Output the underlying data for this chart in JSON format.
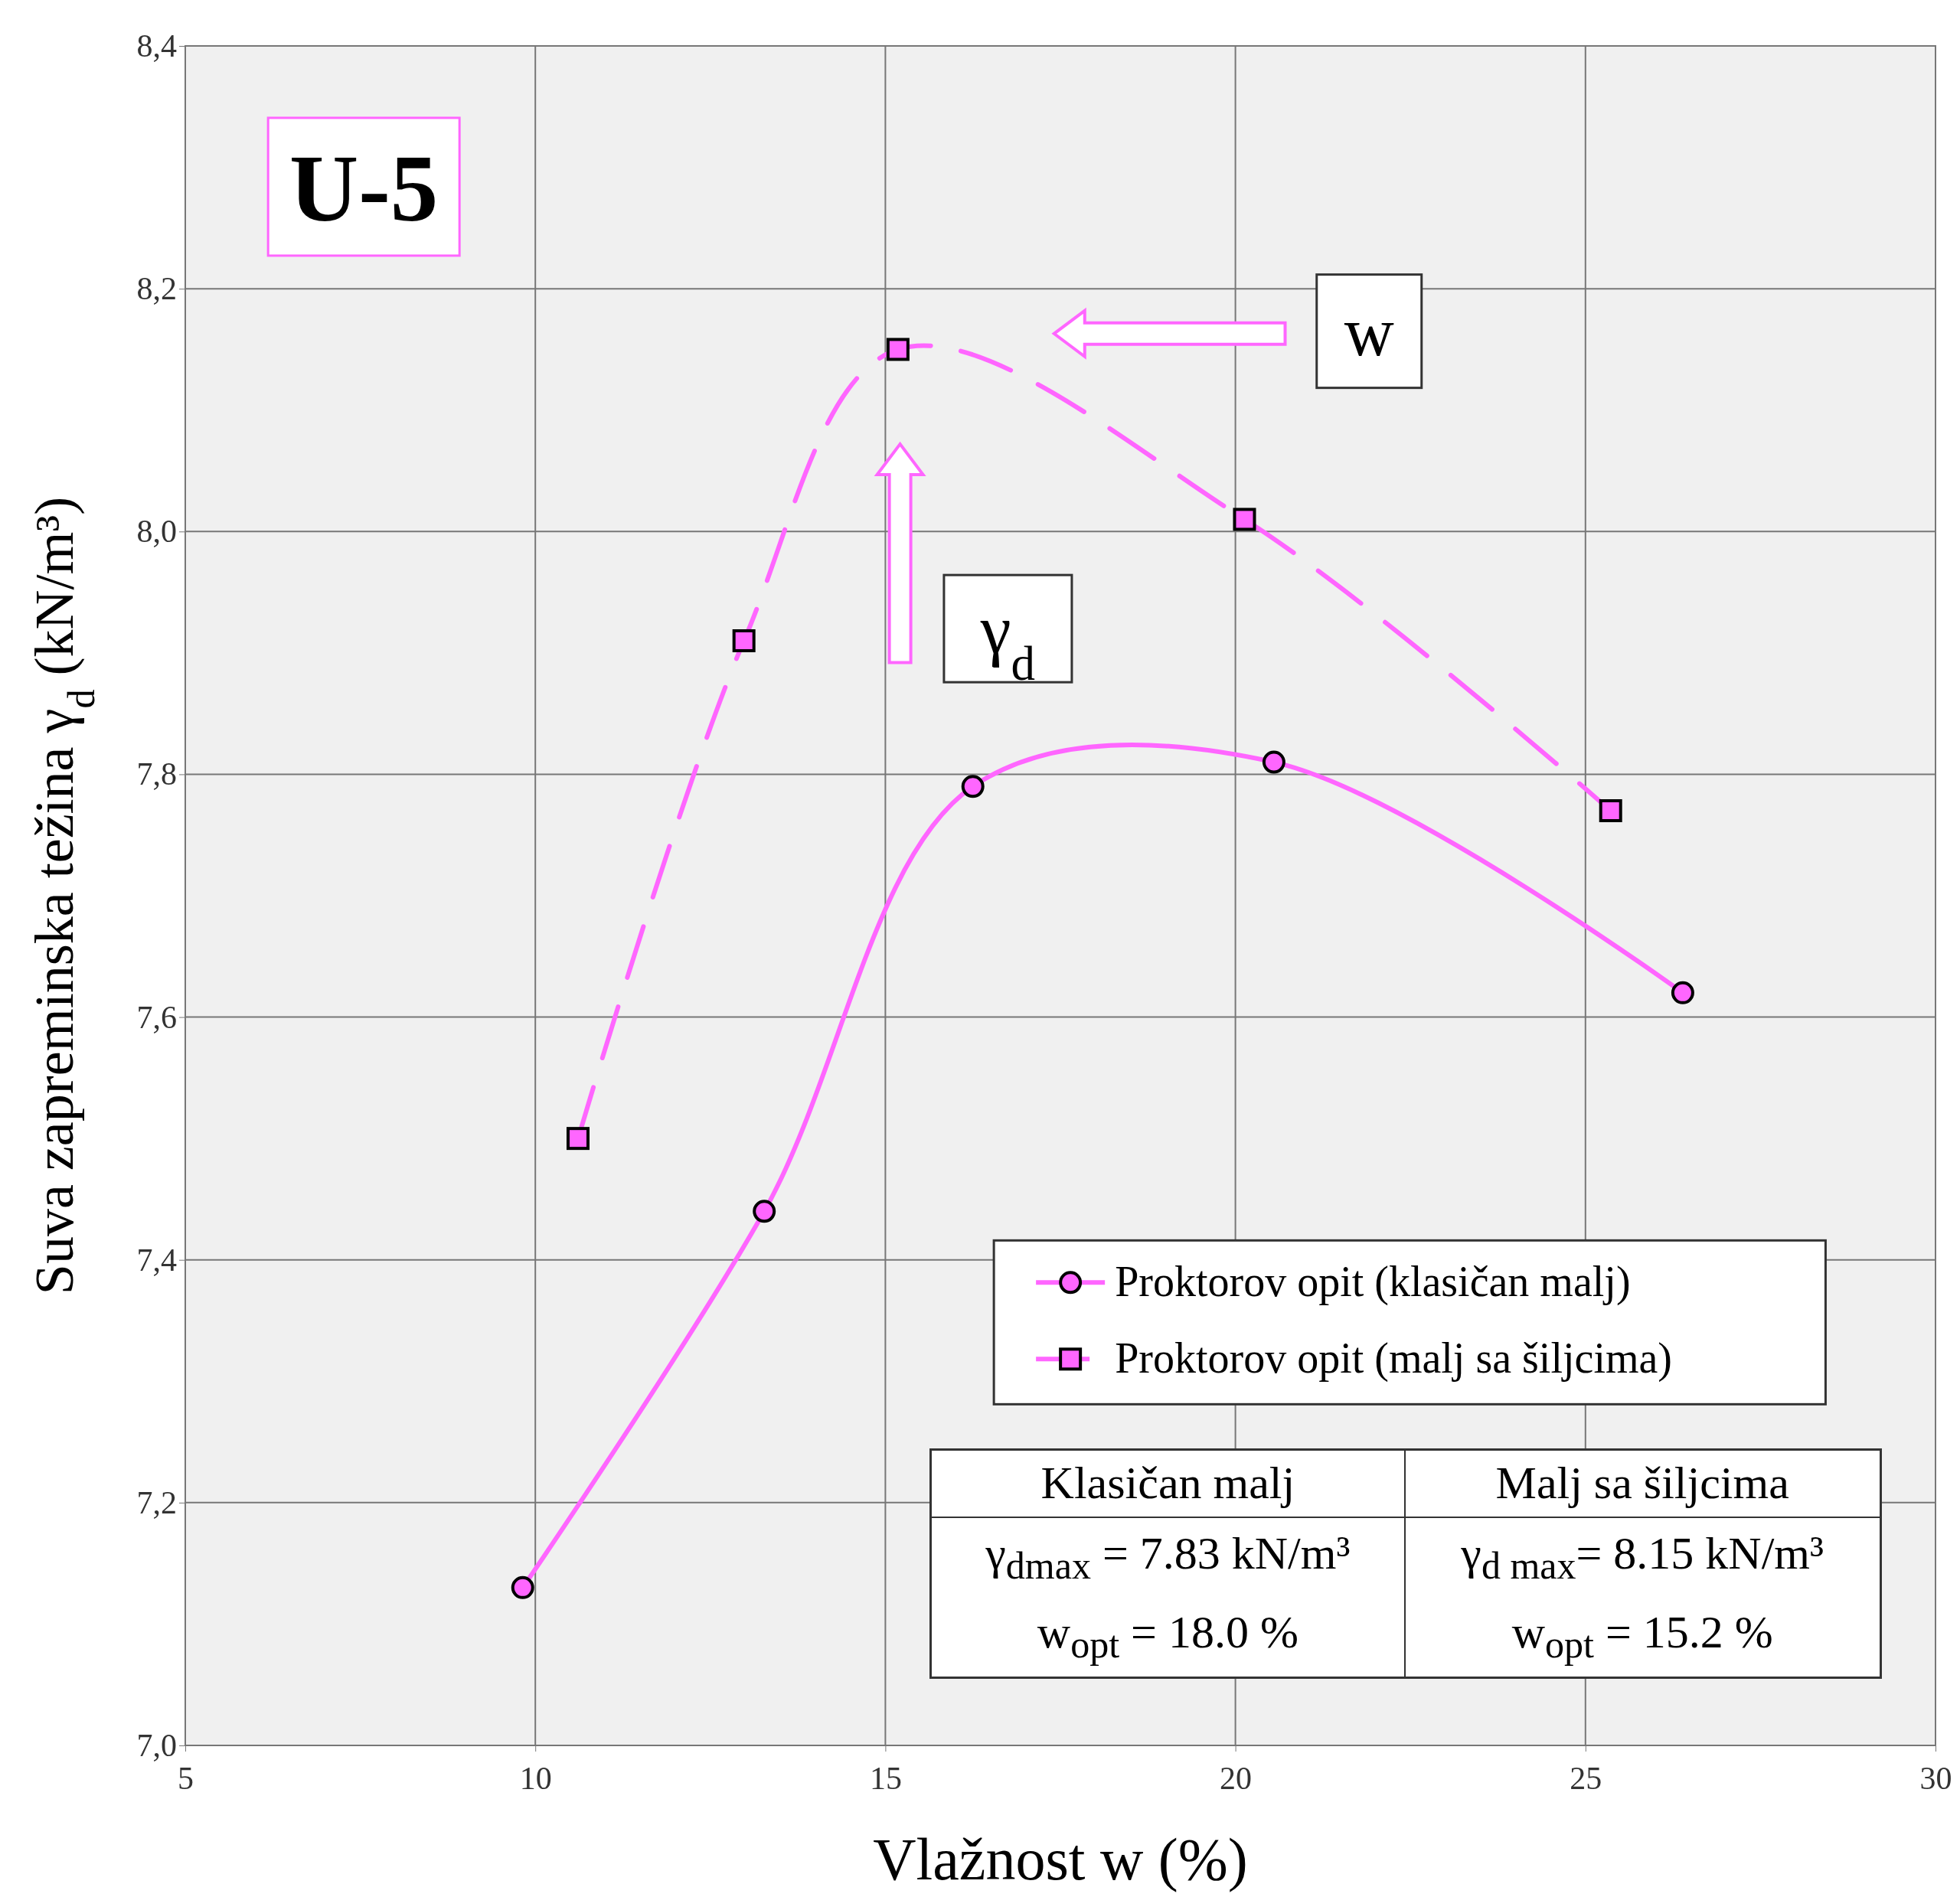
{
  "chart_data": {
    "type": "line",
    "xlabel": "Vlažnost w (%)",
    "ylabel": "Suva zapreminska težina γ$_{d}$  (kN/m³)",
    "xlim": [
      5,
      30
    ],
    "xticks": [
      5,
      10,
      15,
      20,
      25,
      30
    ],
    "ylim": [
      7.0,
      8.4
    ],
    "yticks": [
      {
        "value": 7.0,
        "label": "7,0"
      },
      {
        "value": 7.2,
        "label": "7,2"
      },
      {
        "value": 7.4,
        "label": "7,4"
      },
      {
        "value": 7.6,
        "label": "7,6"
      },
      {
        "value": 7.8,
        "label": "7,8"
      },
      {
        "value": 8.0,
        "label": "8,0"
      },
      {
        "value": 8.2,
        "label": "8,2"
      },
      {
        "value": 8.4,
        "label": "8,4"
      }
    ],
    "grid": true,
    "legend": "bottom right",
    "series": [
      {
        "name": "Proktorov opit (klasičan malj)",
        "color": "#ff66ff",
        "marker": "circle",
        "line_style": "solid",
        "x": [
          9.82,
          13.27,
          16.25,
          20.55,
          26.39
        ],
        "values": [
          7.13,
          7.44,
          7.79,
          7.81,
          7.62
        ]
      },
      {
        "name": "Proktorov opit (malj sa šiljcima)",
        "color": "#ff66ff",
        "marker": "square",
        "line_style": "dashed",
        "x": [
          10.61,
          12.98,
          15.18,
          20.13,
          25.36
        ],
        "values": [
          7.5,
          7.91,
          8.15,
          8.01,
          7.77
        ]
      }
    ],
    "annotations": [
      "U-5",
      "w",
      "γ$_{d}$",
      "Klasičan malj",
      "Malj sa šiljcima",
      "γ$_{dmax}$ = 7.83 kN/m³",
      "w$_{opt}$ = 18.0 %",
      "γ$_{d max}$= 8.15 kN/m³",
      "w$_{opt}$ = 15.2 %"
    ]
  }
}
